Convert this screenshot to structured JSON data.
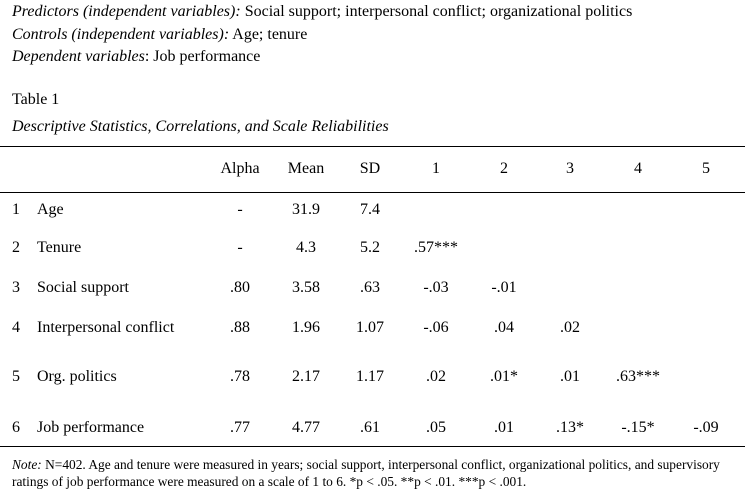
{
  "intro": [
    {
      "label": "Predictors (independent variables):",
      "value": " Social support; interpersonal conflict; organizational politics"
    },
    {
      "label": "Controls (independent variables):",
      "value": " Age; tenure"
    },
    {
      "label": "Dependent variables",
      "value": ": Job performance"
    }
  ],
  "table": {
    "number": "Table 1",
    "title": "Descriptive Statistics, Correlations, and Scale Reliabilities",
    "headers": [
      "Alpha",
      "Mean",
      "SD",
      "1",
      "2",
      "3",
      "4",
      "5"
    ],
    "rows": [
      {
        "num": "1",
        "label": "Age",
        "cells": [
          "-",
          "31.9",
          "7.4",
          "",
          "",
          "",
          "",
          ""
        ]
      },
      {
        "num": "2",
        "label": "Tenure",
        "cells": [
          "-",
          "4.3",
          "5.2",
          ".57***",
          "",
          "",
          "",
          ""
        ]
      },
      {
        "num": "3",
        "label": "Social support",
        "cells": [
          ".80",
          "3.58",
          ".63",
          "-.03",
          "-.01",
          "",
          "",
          ""
        ]
      },
      {
        "num": "4",
        "label": "Interpersonal conflict",
        "cells": [
          ".88",
          "1.96",
          "1.07",
          "-.06",
          ".04",
          ".02",
          "",
          ""
        ]
      },
      {
        "num": "5",
        "label": "Org. politics",
        "cells": [
          ".78",
          "2.17",
          "1.17",
          ".02",
          ".01*",
          ".01",
          ".63***",
          ""
        ]
      },
      {
        "num": "6",
        "label": "Job performance",
        "cells": [
          ".77",
          "4.77",
          ".61",
          ".05",
          ".01",
          ".13*",
          "-.15*",
          "-.09"
        ]
      }
    ],
    "note_label": "Note:",
    "note_text": " N=402. Age and tenure were measured in years; social support, interpersonal conflict, organizational politics, and supervisory ratings of job performance were measured on a scale of 1 to 6. *p < .05. **p < .01. ***p < .001."
  }
}
